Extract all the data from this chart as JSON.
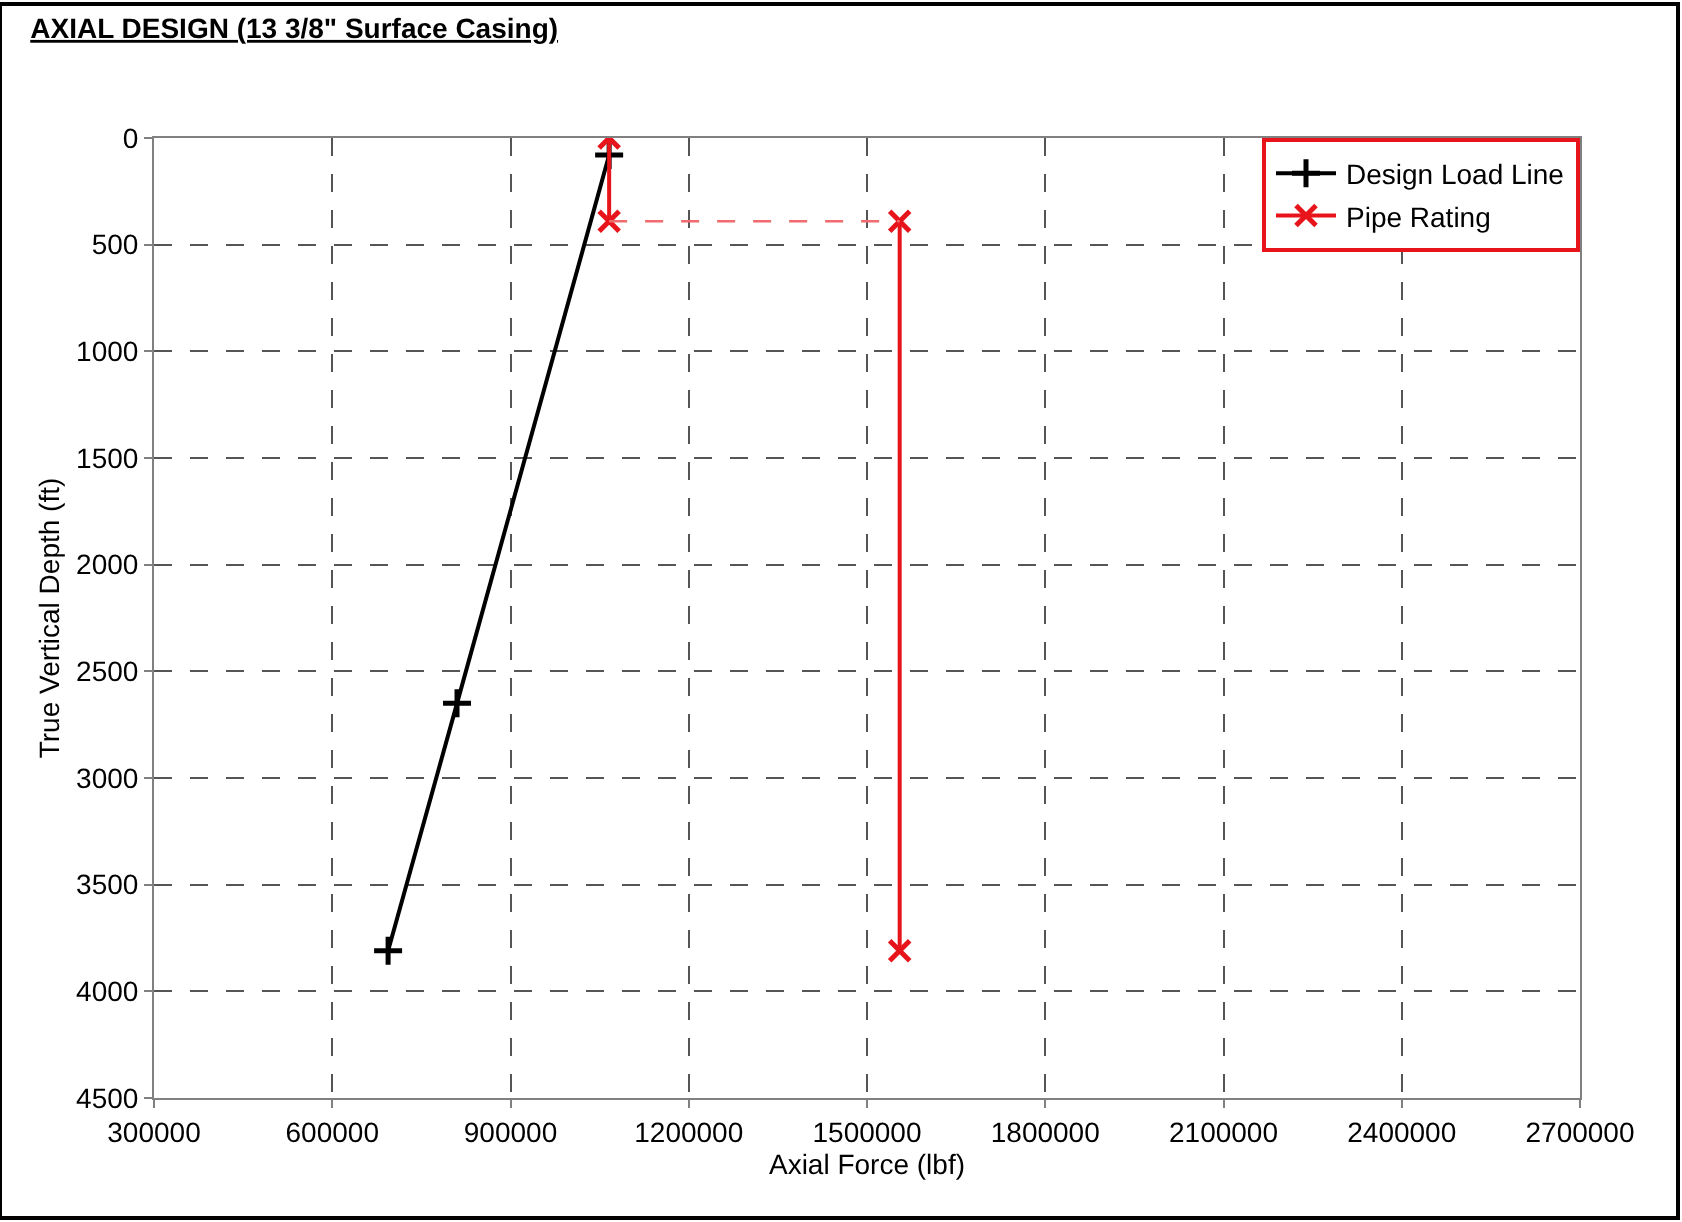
{
  "chart_data": {
    "type": "line",
    "title": "AXIAL DESIGN (13 3/8\" Surface Casing)",
    "xlabel": "Axial Force (lbf)",
    "ylabel": "True Vertical Depth (ft)",
    "series": [
      {
        "name": "Design Load Line",
        "color": "#000000",
        "x": [
          694000,
          810000,
          1066000
        ],
        "values": [
          3810,
          2650,
          80
        ],
        "marker": "cross",
        "line_style": "solid"
      },
      {
        "name": "Pipe Rating",
        "color": "#e8141c",
        "x": [
          1066000,
          1066000,
          null,
          1555000,
          1555000
        ],
        "values": [
          0,
          390,
          null,
          390,
          3810
        ],
        "marker": "x",
        "line_style": "solid"
      },
      {
        "color": "#f06a6e",
        "x": [
          1066000,
          1555000
        ],
        "values": [
          390,
          390
        ],
        "marker": "none",
        "line_style": "dashed"
      }
    ],
    "xlim": [
      300000,
      2700000
    ],
    "xticks": [
      300000,
      600000,
      900000,
      1200000,
      1500000,
      1800000,
      2100000,
      2400000,
      2700000
    ],
    "ylim": [
      4500,
      0
    ],
    "yticks": [
      0,
      500,
      1000,
      1500,
      2000,
      2500,
      3000,
      3500,
      4000,
      4500
    ],
    "grid": true,
    "legend": "top right"
  }
}
